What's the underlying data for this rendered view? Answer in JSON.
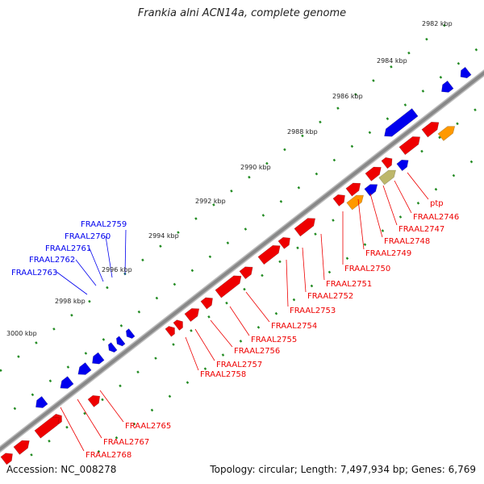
{
  "title": "Frankia alni ACN14a, complete genome",
  "accession": "Accession: NC_008278",
  "summary": "Topology: circular; Length: 7,497,934 bp; Genes: 6,769",
  "colors": {
    "reverse_gene": "#0000ee",
    "forward_gene": "#ee0000",
    "orange_gene": "#ff9900",
    "tan_gene": "#bdb76b",
    "backbone": "#888888",
    "tick": "#228b22"
  },
  "ticks": [
    "2982 kbp",
    "2984 kbp",
    "2986 kbp",
    "2988 kbp",
    "2990 kbp",
    "2992 kbp",
    "2994 kbp",
    "2996 kbp",
    "2998 kbp",
    "3000 kbp"
  ],
  "reverse_labels": [
    "FRAAL2759",
    "FRAAL2760",
    "FRAAL2761",
    "FRAAL2762",
    "FRAAL2763"
  ],
  "forward_labels": [
    "ptp",
    "FRAAL2746",
    "FRAAL2747",
    "FRAAL2748",
    "FRAAL2749",
    "FRAAL2750",
    "FRAAL2751",
    "FRAAL2752",
    "FRAAL2753",
    "FRAAL2754",
    "FRAAL2755",
    "FRAAL2756",
    "FRAAL2757",
    "FRAAL2758",
    "FRAAL2765",
    "FRAAL2767",
    "FRAAL2768"
  ]
}
